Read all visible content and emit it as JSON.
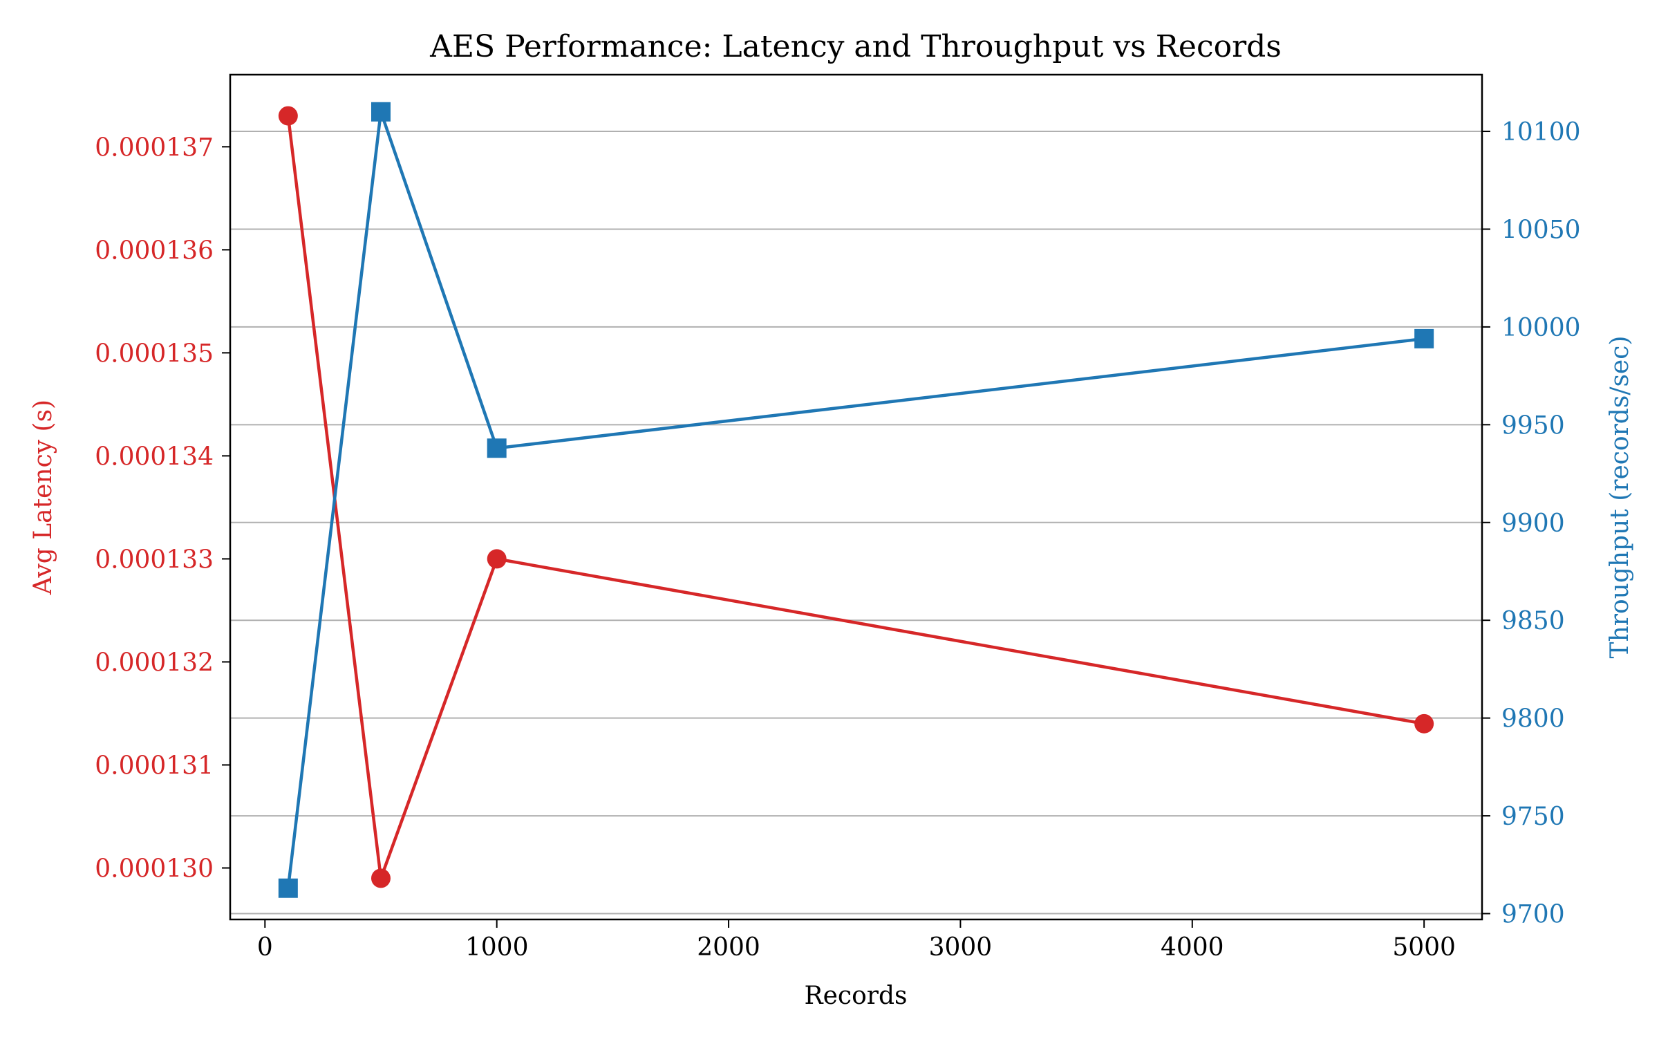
{
  "chart_data": {
    "type": "line",
    "title": "AES Performance: Latency and Throughput vs Records",
    "xlabel": "Records",
    "xlim": [
      -150,
      5250
    ],
    "x_ticks": [
      0,
      1000,
      2000,
      3000,
      4000,
      5000
    ],
    "x_tick_labels": [
      "0",
      "1000",
      "2000",
      "3000",
      "4000",
      "5000"
    ],
    "y_left": {
      "label": "Avg Latency (s)",
      "color": "#d62728",
      "lim": [
        0.0001295,
        0.0001377
      ],
      "ticks": [
        0.00013,
        0.000131,
        0.000132,
        0.000133,
        0.000134,
        0.000135,
        0.000136,
        0.000137
      ],
      "tick_labels": [
        "0.000130",
        "0.000131",
        "0.000132",
        "0.000133",
        "0.000134",
        "0.000135",
        "0.000136",
        "0.000137"
      ]
    },
    "y_right": {
      "label": "Throughput (records/sec)",
      "color": "#1f77b4",
      "lim": [
        9697,
        10129
      ],
      "ticks": [
        9700,
        9750,
        9800,
        9850,
        9900,
        9950,
        10000,
        10050,
        10100
      ],
      "tick_labels": [
        "9700",
        "9750",
        "9800",
        "9850",
        "9900",
        "9950",
        "10000",
        "10050",
        "10100"
      ]
    },
    "grid": "horizontal lines at right-axis ticks",
    "x": [
      100,
      500,
      1000,
      5000
    ],
    "series": [
      {
        "axis": "left",
        "marker": "circle",
        "color": "#d62728",
        "values": [
          0.0001373,
          0.0001299,
          0.000133,
          0.0001314
        ]
      },
      {
        "axis": "right",
        "marker": "square",
        "color": "#1f77b4",
        "values": [
          9713,
          10110,
          9938,
          9994
        ]
      }
    ]
  }
}
